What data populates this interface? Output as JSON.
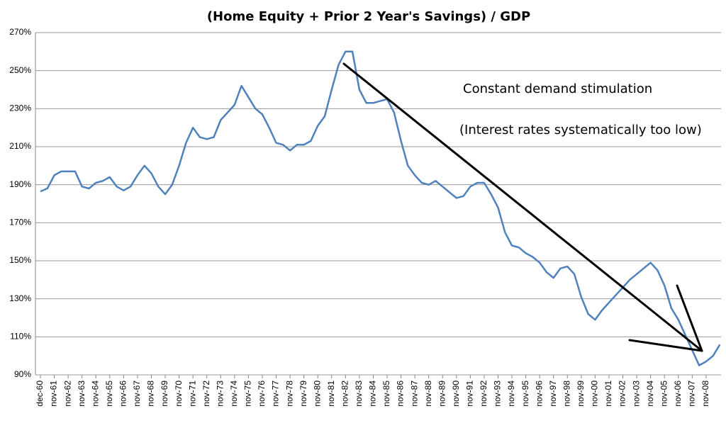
{
  "chart_data": {
    "type": "line",
    "title": "(Home Equity + Prior 2 Year's Savings) / GDP",
    "annotations": [
      "Constant demand stimulation",
      "(Interest rates systematically too low)"
    ],
    "categories": [
      "dec-60",
      null,
      "nov-61",
      null,
      "nov-62",
      null,
      "nov-63",
      null,
      "nov-64",
      null,
      "nov-65",
      null,
      "nov-66",
      null,
      "nov-67",
      null,
      "nov-68",
      null,
      "nov-69",
      null,
      "nov-70",
      null,
      "nov-71",
      null,
      "nov-72",
      null,
      "nov-73",
      null,
      "nov-74",
      null,
      "nov-75",
      null,
      "nov-76",
      null,
      "nov-77",
      null,
      "nov-78",
      null,
      "nov-79",
      null,
      "nov-80",
      null,
      "nov-81",
      null,
      "nov-82",
      null,
      "nov-83",
      null,
      "nov-84",
      null,
      "nov-85",
      null,
      "nov-86",
      null,
      "nov-87",
      null,
      "nov-88",
      null,
      "nov-89",
      null,
      "nov-90",
      null,
      "nov-91",
      null,
      "nov-92",
      null,
      "nov-93",
      null,
      "nov-94",
      null,
      "nov-95",
      null,
      "nov-96",
      null,
      "nov-97",
      null,
      "nov-98",
      null,
      "nov-99",
      null,
      "nov-00",
      null,
      "nov-01",
      null,
      "nov-02",
      null,
      "nov-03",
      null,
      "nov-04",
      null,
      "nov-05",
      null,
      "nov-06",
      null,
      "nov-07",
      null,
      "nov-08",
      null,
      null
    ],
    "values": [
      186.5,
      188,
      195,
      197,
      197,
      197,
      189,
      188,
      191,
      192,
      194,
      189,
      187,
      189,
      195,
      200,
      196,
      189,
      185,
      190,
      200,
      212,
      220,
      215,
      214,
      215,
      224,
      228,
      232,
      242,
      236,
      230,
      227,
      220,
      212,
      211,
      208,
      211,
      211,
      213,
      221,
      226,
      240,
      253,
      260,
      260,
      240,
      233,
      233,
      234,
      235,
      228,
      213,
      200,
      195,
      191,
      190,
      192,
      189,
      186,
      183,
      184,
      189,
      191,
      191,
      185,
      178,
      165,
      158,
      157,
      154,
      152,
      149,
      144,
      141,
      146,
      147,
      143,
      131,
      122,
      119,
      124,
      128,
      132,
      136,
      140,
      143,
      146,
      149,
      145,
      137,
      125,
      119,
      111,
      103,
      95,
      97,
      100,
      106
    ],
    "color": "#4f81bd",
    "ylim": [
      90,
      270
    ],
    "yticks": [
      {
        "value": 90,
        "label": "90%"
      },
      {
        "value": 110,
        "label": "110%"
      },
      {
        "value": 130,
        "label": "130%"
      },
      {
        "value": 150,
        "label": "150%"
      },
      {
        "value": 170,
        "label": "170%"
      },
      {
        "value": 190,
        "label": "190%"
      },
      {
        "value": 210,
        "label": "210%"
      },
      {
        "value": 230,
        "label": "230%"
      },
      {
        "value": 250,
        "label": "250%"
      },
      {
        "value": 270,
        "label": "270%"
      }
    ],
    "grid": true
  }
}
